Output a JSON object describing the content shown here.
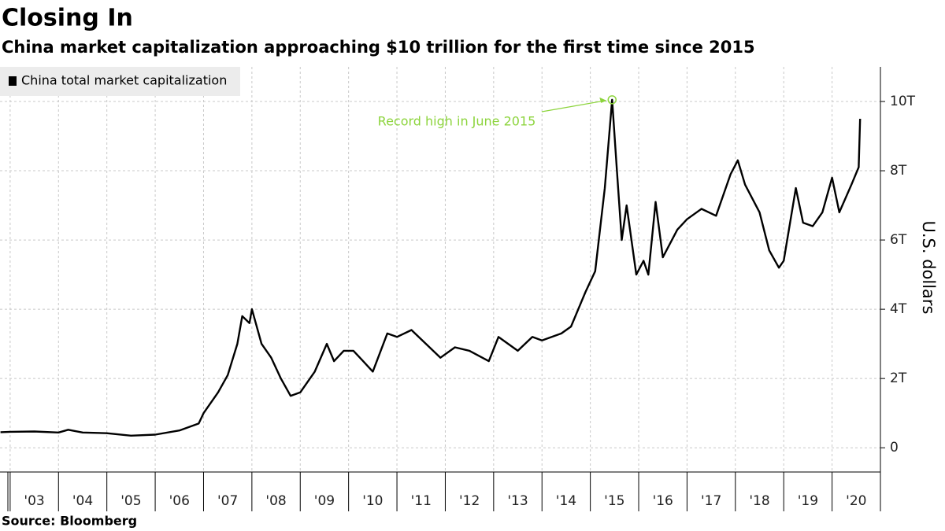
{
  "chart_data": {
    "type": "line",
    "title": "Closing In",
    "subtitle": "China market capitalization approaching $10 trillion for the first time since 2015",
    "y_axis_label": "U.S. dollars",
    "source": "Source: Bloomberg",
    "annotation": {
      "text": "Record high in June 2015",
      "x": 2015.45,
      "y": 10.05,
      "color": "#8cd43c"
    },
    "legend": "top-left",
    "grid": true,
    "xlim": [
      2002.79,
      2021.0
    ],
    "xticks": [
      {
        "value": 2003,
        "label": "'03"
      },
      {
        "value": 2004,
        "label": "'04"
      },
      {
        "value": 2005,
        "label": "'05"
      },
      {
        "value": 2006,
        "label": "'06"
      },
      {
        "value": 2007,
        "label": "'07"
      },
      {
        "value": 2008,
        "label": "'08"
      },
      {
        "value": 2009,
        "label": "'09"
      },
      {
        "value": 2010,
        "label": "'10"
      },
      {
        "value": 2011,
        "label": "'11"
      },
      {
        "value": 2012,
        "label": "'12"
      },
      {
        "value": 2013,
        "label": "'13"
      },
      {
        "value": 2014,
        "label": "'14"
      },
      {
        "value": 2015,
        "label": "'15"
      },
      {
        "value": 2016,
        "label": "'16"
      },
      {
        "value": 2017,
        "label": "'17"
      },
      {
        "value": 2018,
        "label": "'18"
      },
      {
        "value": 2019,
        "label": "'19"
      },
      {
        "value": 2020,
        "label": "'20"
      }
    ],
    "ylim": [
      -0.7,
      11
    ],
    "yticks": [
      0,
      {
        "value": 2,
        "label": "2T"
      },
      {
        "value": 4,
        "label": "4T"
      },
      {
        "value": 6,
        "label": "6T"
      },
      {
        "value": 8,
        "label": "8T"
      },
      {
        "value": 10,
        "label": "10T"
      }
    ],
    "x": [
      2002.8,
      2003.0,
      2003.5,
      2004.0,
      2004.2,
      2004.5,
      2005.0,
      2005.5,
      2006.0,
      2006.5,
      2006.9,
      2007.0,
      2007.3,
      2007.5,
      2007.7,
      2007.8,
      2007.95,
      2008.0,
      2008.2,
      2008.4,
      2008.6,
      2008.8,
      2009.0,
      2009.3,
      2009.55,
      2009.7,
      2009.9,
      2010.1,
      2010.3,
      2010.5,
      2010.8,
      2011.0,
      2011.3,
      2011.6,
      2011.9,
      2012.2,
      2012.5,
      2012.9,
      2013.1,
      2013.5,
      2013.8,
      2014.0,
      2014.4,
      2014.6,
      2014.9,
      2015.1,
      2015.3,
      2015.45,
      2015.55,
      2015.65,
      2015.75,
      2015.95,
      2016.1,
      2016.2,
      2016.35,
      2016.5,
      2016.8,
      2017.0,
      2017.3,
      2017.6,
      2017.9,
      2018.05,
      2018.2,
      2018.5,
      2018.7,
      2018.9,
      2019.0,
      2019.25,
      2019.4,
      2019.6,
      2019.8,
      2020.0,
      2020.15,
      2020.4,
      2020.55,
      2020.58
    ],
    "series": [
      {
        "name": "China total market capitalization",
        "color": "#000000",
        "values": [
          0.45,
          0.46,
          0.47,
          0.44,
          0.52,
          0.44,
          0.42,
          0.35,
          0.38,
          0.5,
          0.7,
          1.0,
          1.6,
          2.1,
          3.0,
          3.8,
          3.6,
          4.0,
          3.0,
          2.6,
          2.0,
          1.5,
          1.6,
          2.2,
          3.0,
          2.5,
          2.8,
          2.8,
          2.5,
          2.2,
          3.3,
          3.2,
          3.4,
          3.0,
          2.6,
          2.9,
          2.8,
          2.5,
          3.2,
          2.8,
          3.2,
          3.1,
          3.3,
          3.5,
          4.5,
          5.1,
          7.5,
          10.05,
          8.0,
          6.0,
          7.0,
          5.0,
          5.4,
          5.0,
          7.1,
          5.5,
          6.3,
          6.6,
          6.9,
          6.7,
          7.9,
          8.3,
          7.6,
          6.8,
          5.7,
          5.2,
          5.4,
          7.5,
          6.5,
          6.4,
          6.8,
          7.8,
          6.8,
          7.6,
          8.1,
          9.5
        ]
      }
    ]
  }
}
